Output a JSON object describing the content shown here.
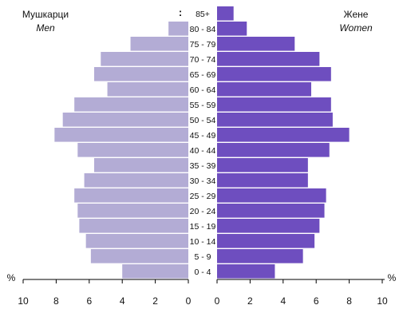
{
  "chart_data": {
    "type": "bar",
    "orientation": "horizontal-population-pyramid",
    "legend": {
      "men": {
        "label_mk": "Мушкарци",
        "label_en": "Men"
      },
      "women": {
        "label_mk": "Жене",
        "label_en": "Women"
      }
    },
    "axis_unit": "%",
    "x_ticks_left": [
      "10",
      "8",
      "6",
      "4",
      "2",
      "0"
    ],
    "x_ticks_right": [
      "0",
      "2",
      "4",
      "6",
      "8",
      "10"
    ],
    "xlim": [
      0,
      10
    ],
    "categories": [
      "85+",
      "80 - 84",
      "75 - 79",
      "70 - 74",
      "65 - 69",
      "60 - 64",
      "55 - 59",
      "50 - 54",
      "45 - 49",
      "40 - 44",
      "35 - 39",
      "30 - 34",
      "25 - 29",
      "20 - 24",
      "15 - 19",
      "10 - 14",
      "5 - 9",
      "0 - 4"
    ],
    "men_values": [
      null,
      1.2,
      3.5,
      5.3,
      5.7,
      4.9,
      6.9,
      7.6,
      8.1,
      6.7,
      5.7,
      6.3,
      6.9,
      6.7,
      6.6,
      6.2,
      5.9,
      4.0
    ],
    "men_missing_marker": ":",
    "women_values": [
      1.0,
      1.8,
      4.7,
      6.2,
      6.9,
      5.7,
      6.9,
      7.0,
      8.0,
      6.8,
      5.5,
      5.5,
      6.6,
      6.5,
      6.2,
      5.9,
      5.2,
      3.5
    ],
    "colors": {
      "men": "#b3acd5",
      "women": "#6e4ebf",
      "axis": "#000000"
    },
    "grid": false
  }
}
